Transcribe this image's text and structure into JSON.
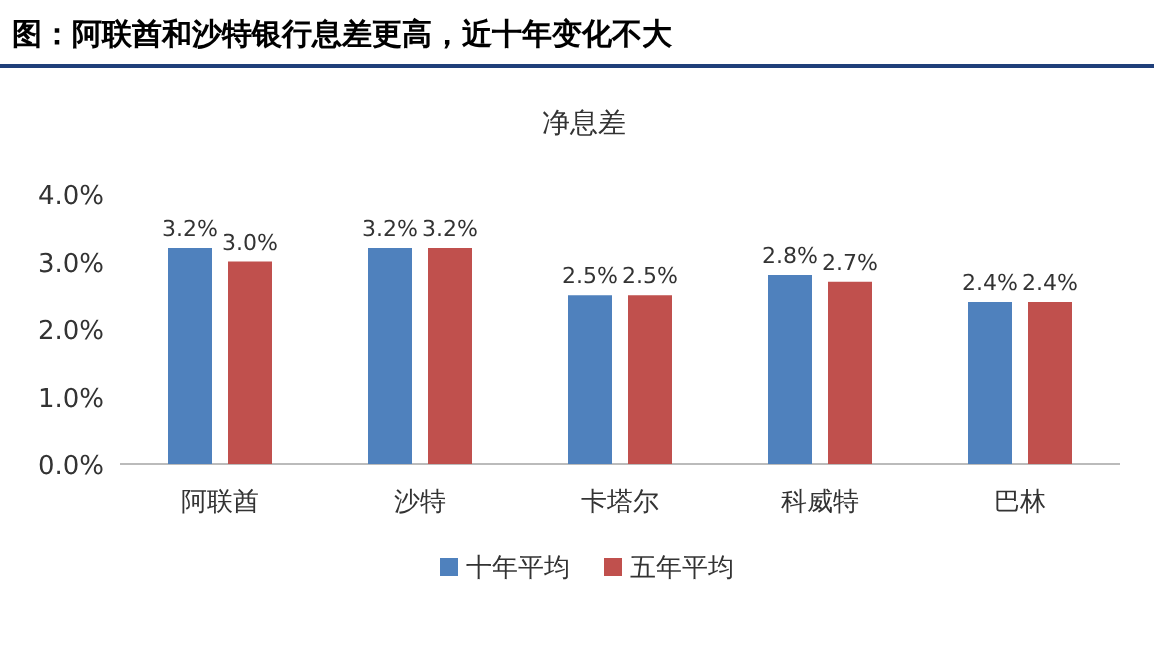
{
  "chart_data": {
    "type": "bar",
    "title": "图：阿联酋和沙特银行息差更高，近十年变化不大",
    "subtitle": "净息差",
    "categories": [
      "阿联酋",
      "沙特",
      "卡塔尔",
      "科威特",
      "巴林"
    ],
    "series": [
      {
        "name": "十年平均",
        "color": "#4f81bd",
        "values": [
          3.2,
          3.2,
          2.5,
          2.8,
          2.4
        ],
        "value_labels": [
          "3.2%",
          "3.2%",
          "2.5%",
          "2.8%",
          "2.4%"
        ]
      },
      {
        "name": "五年平均",
        "color": "#c0504d",
        "values": [
          3.0,
          3.2,
          2.5,
          2.7,
          2.4
        ],
        "value_labels": [
          "3.0%",
          "3.2%",
          "2.5%",
          "2.7%",
          "2.4%"
        ]
      }
    ],
    "ylim": [
      0,
      4
    ],
    "yticks": [
      {
        "value": 0,
        "label": "0.0%"
      },
      {
        "value": 1,
        "label": "1.0%"
      },
      {
        "value": 2,
        "label": "2.0%"
      },
      {
        "value": 3,
        "label": "3.0%"
      },
      {
        "value": 4,
        "label": "4.0%"
      }
    ],
    "legend": "bottom"
  }
}
